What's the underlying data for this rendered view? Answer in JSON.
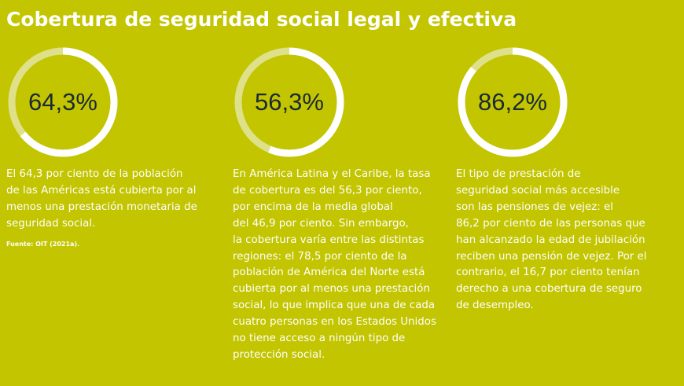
{
  "title": "Cobertura de seguridad social legal y efectiva",
  "colors": {
    "background": "#c2c500",
    "ring_filled": "#ffffff",
    "ring_track": "#dfe08a",
    "value_text": "#1b2a33"
  },
  "chart_data": [
    {
      "type": "pie",
      "values": [
        64.3
      ],
      "max": 100,
      "value_label": "64,3%",
      "description": "El 64,3 por ciento de la población\nde las Américas está cubierta por al\nmenos una prestación monetaria de\nseguridad social."
    },
    {
      "type": "pie",
      "values": [
        56.3
      ],
      "max": 100,
      "value_label": "56,3%",
      "description": "En América Latina y el Caribe, la tasa\nde cobertura es del 56,3 por ciento,\npor encima de la media global\ndel 46,9 por ciento. Sin embargo,\nla cobertura varía entre las distintas\nregiones: el 78,5 por ciento de la\npoblación de América del Norte está\ncubierta por al menos una prestación\nsocial, lo que implica que una de cada\ncuatro personas en los Estados Unidos\nno tiene acceso a ningún tipo de\nprotección social."
    },
    {
      "type": "pie",
      "values": [
        86.2
      ],
      "max": 100,
      "value_label": "86,2%",
      "description": "El tipo de prestación de\nseguridad social más accesible\nson las pensiones de vejez: el\n86,2 por ciento de las personas que\nhan alcanzado la edad de jubilación\nreciben una pensión de vejez. Por el\ncontrario, el 16,7 por ciento tenían\nderecho a una cobertura de seguro\nde desempleo."
    }
  ],
  "source": "Fuente: OIT (2021a)."
}
